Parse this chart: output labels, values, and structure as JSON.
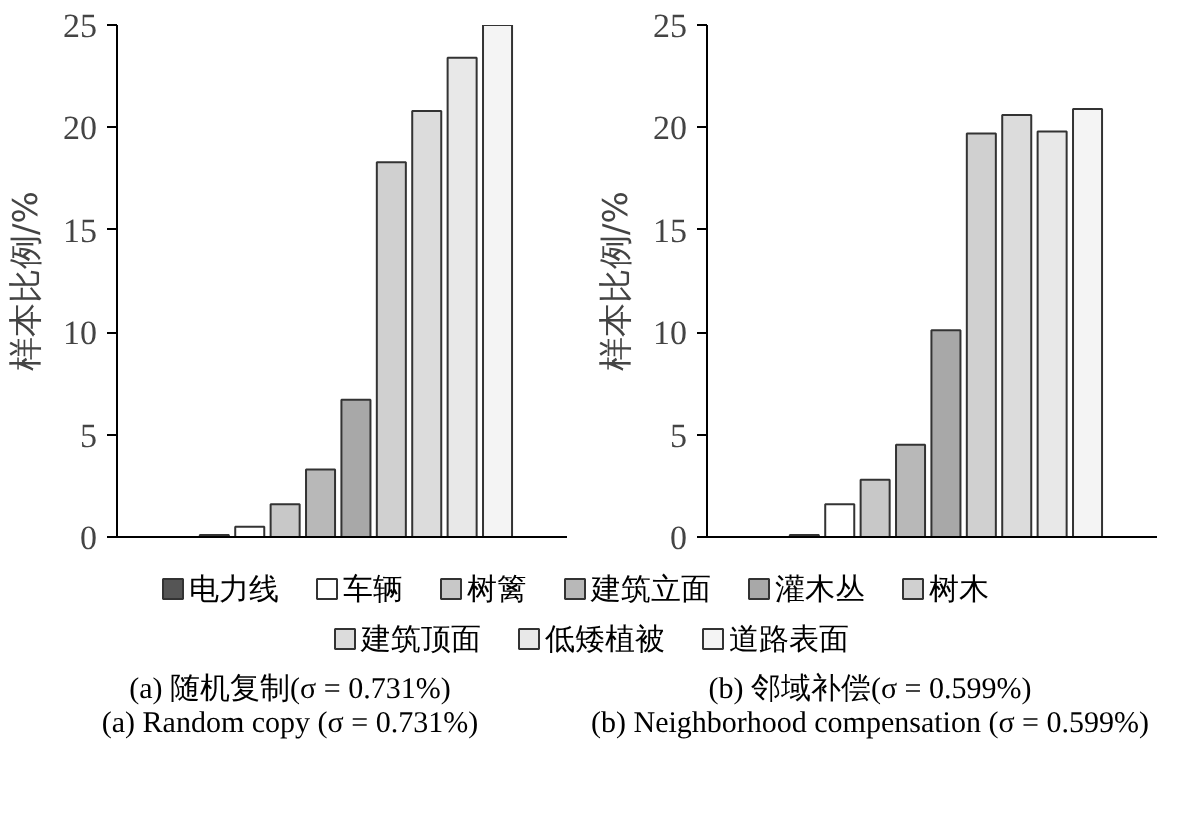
{
  "chart_data": [
    {
      "type": "bar",
      "title": "(a) 随机复制(σ = 0.731%)",
      "subtitle": "(a) Random copy (σ = 0.731%)",
      "ylabel": "样本比例/%",
      "categories": [
        null
      ],
      "ylim": [
        0,
        25
      ],
      "yticks": [
        0,
        5,
        10,
        15,
        20,
        25
      ],
      "legend": "bottom",
      "series": [
        {
          "name": "电力线",
          "color": "#555555",
          "values": [
            0.1
          ]
        },
        {
          "name": "车辆",
          "color": "#ffffff",
          "values": [
            0.5
          ]
        },
        {
          "name": "树篱",
          "color": "#c8c8c8",
          "values": [
            1.6
          ]
        },
        {
          "name": "建筑立面",
          "color": "#b8b8b8",
          "values": [
            3.3
          ]
        },
        {
          "name": "灌木丛",
          "color": "#a8a8a8",
          "values": [
            6.7
          ]
        },
        {
          "name": "树木",
          "color": "#d0d0d0",
          "values": [
            18.3
          ]
        },
        {
          "name": "建筑顶面",
          "color": "#dcdcdc",
          "values": [
            20.8
          ]
        },
        {
          "name": "低矮植被",
          "color": "#e8e8e8",
          "values": [
            23.4
          ]
        },
        {
          "name": "道路表面",
          "color": "#f4f4f4",
          "values": [
            25.0
          ]
        }
      ]
    },
    {
      "type": "bar",
      "title": "(b) 邻域补偿(σ = 0.599%)",
      "subtitle": "(b) Neighborhood compensation (σ = 0.599%)",
      "ylabel": "样本比例/%",
      "categories": [
        null
      ],
      "ylim": [
        0,
        25
      ],
      "yticks": [
        0,
        5,
        10,
        15,
        20,
        25
      ],
      "series": [
        {
          "color": "#555555",
          "values": [
            0.1
          ]
        },
        {
          "color": "#ffffff",
          "values": [
            1.6
          ]
        },
        {
          "color": "#c8c8c8",
          "values": [
            2.8
          ]
        },
        {
          "color": "#b8b8b8",
          "values": [
            4.5
          ]
        },
        {
          "color": "#a8a8a8",
          "values": [
            10.1
          ]
        },
        {
          "color": "#d0d0d0",
          "values": [
            19.7
          ]
        },
        {
          "color": "#dcdcdc",
          "values": [
            20.6
          ]
        },
        {
          "color": "#e8e8e8",
          "values": [
            19.8
          ]
        },
        {
          "color": "#f4f4f4",
          "values": [
            20.9
          ]
        }
      ]
    }
  ]
}
